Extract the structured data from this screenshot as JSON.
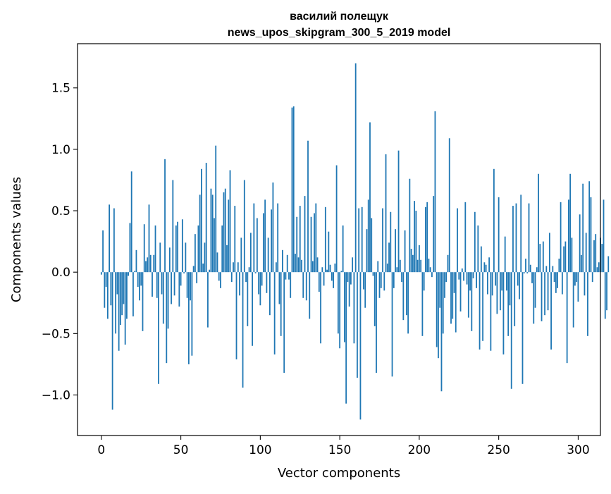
{
  "chart_data": {
    "type": "bar",
    "title": "василий полещук",
    "subtitle": "news_upos_skipgram_300_5_2019 model",
    "xlabel": "Vector components",
    "ylabel": "Components values",
    "xlim": [
      -15,
      314
    ],
    "ylim": [
      -1.33,
      1.86
    ],
    "xticks": [
      0,
      50,
      100,
      150,
      200,
      250,
      300
    ],
    "yticks": [
      -1.0,
      -0.5,
      0.0,
      0.5,
      1.0,
      1.5
    ],
    "xtick_labels": [
      "0",
      "50",
      "100",
      "150",
      "200",
      "250",
      "300"
    ],
    "ytick_labels": [
      "−1.0",
      "−0.5",
      "0.0",
      "0.5",
      "1.0",
      "1.5"
    ],
    "grid": false,
    "bar_color": "#1f77b4",
    "values": [
      -0.02,
      0.34,
      -0.29,
      -0.12,
      -0.38,
      0.55,
      -0.27,
      -1.12,
      0.52,
      -0.5,
      -0.18,
      -0.64,
      -0.43,
      -0.35,
      -0.26,
      -0.59,
      -0.38,
      -0.03,
      0.4,
      0.82,
      -0.36,
      0.01,
      0.18,
      -0.12,
      -0.23,
      -0.11,
      -0.48,
      0.39,
      0.09,
      0.12,
      0.55,
      0.14,
      -0.2,
      0.14,
      0.38,
      -0.21,
      -0.91,
      0.24,
      -0.18,
      -0.42,
      0.92,
      -0.74,
      -0.46,
      0.2,
      -0.26,
      0.75,
      -0.19,
      0.38,
      0.41,
      -0.28,
      -0.11,
      0.43,
      -0.01,
      0.24,
      -0.21,
      -0.75,
      -0.23,
      -0.68,
      0.05,
      0.31,
      -0.09,
      0.38,
      0.63,
      0.84,
      0.07,
      0.24,
      0.89,
      -0.45,
      0.02,
      0.68,
      0.63,
      0.44,
      1.03,
      0.16,
      -0.07,
      -0.13,
      0.38,
      0.65,
      0.68,
      0.22,
      0.59,
      0.83,
      -0.08,
      0.08,
      0.54,
      -0.71,
      0.08,
      -0.19,
      0.28,
      -0.94,
      0.75,
      -0.08,
      -0.44,
      0.04,
      0.32,
      -0.6,
      0.56,
      -0.01,
      0.44,
      -0.18,
      -0.27,
      -0.11,
      0.48,
      0.59,
      -0.17,
      0.28,
      -0.35,
      0.51,
      0.73,
      -0.67,
      0.08,
      0.56,
      -0.26,
      -0.52,
      0.18,
      -0.82,
      -0.06,
      0.14,
      -0.06,
      -0.21,
      1.34,
      1.35,
      0.15,
      0.45,
      0.12,
      0.54,
      0.1,
      -0.21,
      0.62,
      -0.23,
      1.07,
      -0.38,
      0.45,
      0.09,
      0.48,
      0.56,
      0.12,
      -0.16,
      -0.58,
      0.04,
      -0.11,
      0.53,
      0.02,
      0.33,
      0.06,
      -0.07,
      -0.13,
      0.07,
      0.87,
      -0.5,
      -0.62,
      0.01,
      0.38,
      -0.57,
      -1.07,
      -0.08,
      -0.28,
      -0.1,
      0.12,
      -0.58,
      1.7,
      -0.86,
      0.52,
      -1.2,
      0.53,
      -0.14,
      -0.29,
      0.35,
      0.59,
      1.22,
      0.44,
      -0.03,
      -0.44,
      -0.82,
      0.09,
      -0.21,
      -0.13,
      0.52,
      -0.15,
      0.96,
      0.07,
      0.24,
      0.49,
      -0.85,
      -0.13,
      0.35,
      0.04,
      0.99,
      0.1,
      -0.08,
      -0.39,
      0.34,
      -0.35,
      -0.5,
      0.76,
      0.19,
      0.14,
      0.58,
      0.5,
      0.1,
      0.22,
      0.1,
      -0.52,
      -0.15,
      0.53,
      0.57,
      0.11,
      0.04,
      -0.04,
      0.62,
      1.31,
      -0.61,
      -0.7,
      -0.29,
      -0.97,
      -0.5,
      -0.21,
      -0.08,
      0.14,
      1.09,
      -0.42,
      -0.38,
      -0.17,
      -0.49,
      0.52,
      -0.06,
      -0.32,
      0.03,
      -0.07,
      0.57,
      -0.1,
      -0.37,
      -0.15,
      -0.48,
      -0.05,
      0.49,
      -0.13,
      0.38,
      -0.63,
      0.21,
      -0.56,
      0.08,
      0.06,
      -0.18,
      0.12,
      -0.64,
      -0.19,
      0.84,
      -0.11,
      -0.34,
      0.61,
      -0.31,
      -0.15,
      -0.67,
      0.29,
      -0.15,
      -0.52,
      -0.27,
      -0.95,
      0.54,
      -0.44,
      0.56,
      -0.11,
      -0.22,
      0.63,
      -0.91,
      -0.01,
      0.11,
      -0.01,
      0.56,
      0.06,
      -0.09,
      -0.42,
      -0.29,
      0.04,
      0.8,
      0.23,
      -0.4,
      0.25,
      -0.35,
      0.05,
      -0.31,
      0.32,
      -0.63,
      0.05,
      -0.08,
      -0.17,
      -0.13,
      0.11,
      0.57,
      -0.18,
      0.21,
      0.25,
      -0.74,
      0.59,
      0.8,
      0.28,
      -0.45,
      -0.11,
      -0.08,
      -0.24,
      0.47,
      0.14,
      0.72,
      -0.19,
      0.32,
      -0.52,
      0.74,
      0.61,
      -0.08,
      0.26,
      0.31,
      0.04,
      0.08,
      0.28,
      0.23,
      0.59,
      -0.38,
      -0.31,
      0.13
    ]
  }
}
